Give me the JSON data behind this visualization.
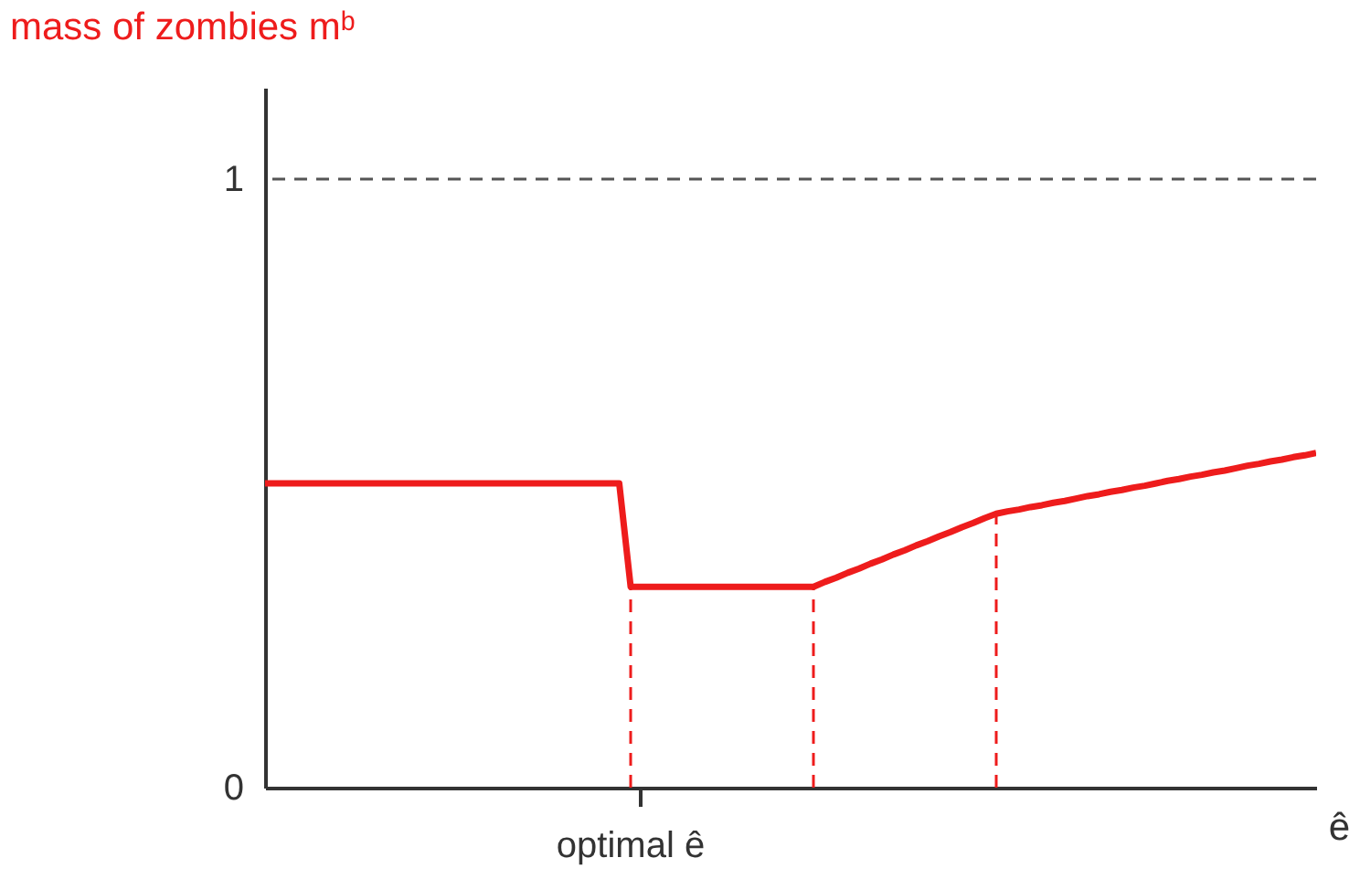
{
  "chart_data": {
    "type": "line",
    "xlabel": "ê",
    "ylabel": "mass of zombies mᵇ",
    "categories": [
      null,
      null,
      null,
      null,
      null,
      null,
      null,
      null,
      null,
      null,
      null,
      null,
      null,
      null,
      null,
      null,
      null,
      null,
      null,
      null,
      null,
      null,
      null,
      null,
      null,
      null,
      null,
      null,
      null,
      null,
      null,
      null,
      null,
      null,
      null,
      null,
      null,
      null,
      null,
      null,
      null,
      null,
      null,
      null,
      null,
      null,
      null,
      null,
      null,
      null,
      null,
      null,
      null,
      null,
      null,
      null,
      null,
      null,
      null,
      null,
      null,
      null,
      null,
      null,
      null,
      null,
      null,
      null,
      null,
      null,
      null,
      null,
      null,
      null,
      null,
      null,
      null,
      null,
      null,
      null,
      null,
      null,
      null,
      null,
      null,
      null,
      null,
      null,
      null,
      null,
      null,
      null,
      null
    ],
    "series": [
      {
        "color": "#ee1c1c",
        "values": [
          0.5,
          0.5,
          0.5,
          0.5,
          0.5,
          0.5,
          0.5,
          0.5,
          0.5,
          0.5,
          0.5,
          0.5,
          0.5,
          0.5,
          0.5,
          0.5,
          0.5,
          0.5,
          0.5,
          0.5,
          0.5,
          0.5,
          0.5,
          0.5,
          0.5,
          0.5,
          0.5,
          0.5,
          0.5,
          0.5,
          0.5,
          0.5,
          0.33,
          0.33,
          0.33,
          0.33,
          0.33,
          0.33,
          0.33,
          0.33,
          0.33,
          0.33,
          0.33,
          0.33,
          0.33,
          0.33,
          0.33,
          0.33,
          0.33,
          0.338,
          0.345,
          0.353,
          0.36,
          0.368,
          0.375,
          0.383,
          0.39,
          0.398,
          0.405,
          0.413,
          0.42,
          0.428,
          0.435,
          0.443,
          0.45,
          0.454,
          0.457,
          0.461,
          0.464,
          0.468,
          0.471,
          0.475,
          0.479,
          0.482,
          0.486,
          0.489,
          0.493,
          0.496,
          0.5,
          0.504,
          0.507,
          0.511,
          0.514,
          0.518,
          0.521,
          0.525,
          0.529,
          0.532,
          0.536,
          0.539,
          0.543,
          0.546,
          0.55
        ],
        "errors": [
          null,
          null,
          null,
          null,
          null,
          null,
          null,
          null,
          null,
          null,
          null,
          null,
          null,
          null,
          null,
          null,
          null,
          null,
          null,
          null,
          null,
          null,
          null,
          null,
          null,
          null,
          null,
          null,
          null,
          null,
          null,
          null,
          [
            0,
            0.33
          ],
          null,
          null,
          null,
          null,
          null,
          null,
          null,
          null,
          null,
          null,
          null,
          null,
          null,
          null,
          null,
          [
            0,
            0.33
          ],
          null,
          null,
          null,
          null,
          null,
          null,
          null,
          null,
          null,
          null,
          null,
          null,
          null,
          null,
          null,
          [
            0,
            0.45
          ],
          null,
          null,
          null,
          null,
          null,
          null,
          null,
          null,
          null,
          null,
          null,
          null,
          null,
          null,
          null,
          null,
          null,
          null,
          null,
          null,
          null,
          null,
          null,
          null,
          null,
          null,
          null,
          null
        ]
      }
    ],
    "ylim": [
      0,
      1.15
    ],
    "yticks": [
      0,
      1
    ],
    "annotations": [
      "optimal ê"
    ],
    "ref_lines": [
      {
        "axis": "y",
        "value": 1,
        "color": "#555555",
        "line_style": "dashed"
      }
    ]
  }
}
